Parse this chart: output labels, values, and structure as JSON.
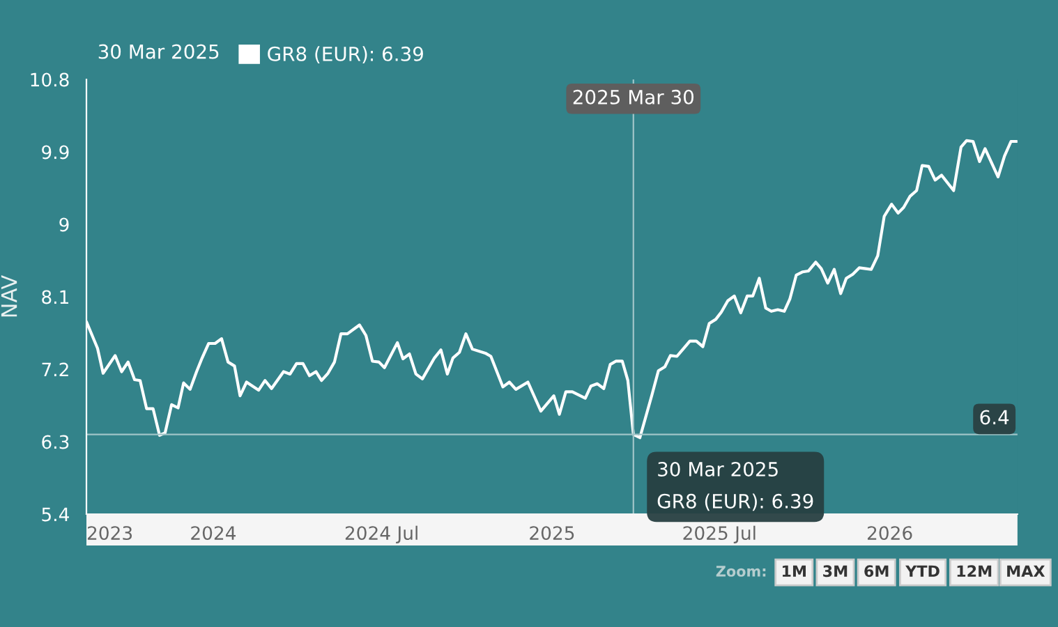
{
  "chart_data": {
    "type": "line",
    "ylabel": "NAV",
    "legend": "top left",
    "grid": false,
    "marker": "none",
    "line_style": "solid",
    "xlim": [
      "2023-08-17",
      "2026-05-19"
    ],
    "xticks": [
      {
        "value": "2023-08-17",
        "label": "2023"
      },
      {
        "value": "2024-01-01",
        "label": "2024"
      },
      {
        "value": "2024-07-01",
        "label": "2024 Jul"
      },
      {
        "value": "2025-01-01",
        "label": "2025"
      },
      {
        "value": "2025-07-01",
        "label": "2025 Jul"
      },
      {
        "value": "2026-01-01",
        "label": "2026"
      }
    ],
    "ylim": [
      5.4,
      10.8
    ],
    "yticks": [
      5.4,
      6.3,
      7.2,
      8.1,
      9,
      9.9,
      10.8
    ],
    "x": [
      "2023-08-17",
      "2023-08-29",
      "2023-09-04",
      "2023-09-17",
      "2023-09-24",
      "2023-10-01",
      "2023-10-08",
      "2023-10-14",
      "2023-10-21",
      "2023-10-28",
      "2023-11-04",
      "2023-11-10",
      "2023-11-17",
      "2023-11-24",
      "2023-11-30",
      "2023-12-07",
      "2023-12-14",
      "2023-12-20",
      "2023-12-27",
      "2024-01-03",
      "2024-01-10",
      "2024-01-17",
      "2024-01-24",
      "2024-01-30",
      "2024-02-06",
      "2024-02-19",
      "2024-02-26",
      "2024-03-04",
      "2024-03-17",
      "2024-03-24",
      "2024-03-31",
      "2024-04-07",
      "2024-04-14",
      "2024-04-21",
      "2024-04-27",
      "2024-05-04",
      "2024-05-11",
      "2024-05-18",
      "2024-05-25",
      "2024-06-07",
      "2024-06-14",
      "2024-06-21",
      "2024-06-28",
      "2024-07-04",
      "2024-07-18",
      "2024-07-24",
      "2024-07-31",
      "2024-08-07",
      "2024-08-14",
      "2024-08-27",
      "2024-09-03",
      "2024-09-10",
      "2024-09-16",
      "2024-09-23",
      "2024-09-30",
      "2024-10-07",
      "2024-10-21",
      "2024-10-27",
      "2024-11-09",
      "2024-11-16",
      "2024-11-23",
      "2024-12-06",
      "2024-12-20",
      "2025-01-03",
      "2025-01-09",
      "2025-01-16",
      "2025-01-23",
      "2025-02-06",
      "2025-02-12",
      "2025-02-19",
      "2025-02-26",
      "2025-03-05",
      "2025-03-11",
      "2025-03-18",
      "2025-03-24",
      "2025-03-30",
      "2025-04-06",
      "2025-04-19",
      "2025-04-26",
      "2025-05-03",
      "2025-05-09",
      "2025-05-16",
      "2025-05-30",
      "2025-06-06",
      "2025-06-13",
      "2025-06-20",
      "2025-06-27",
      "2025-07-03",
      "2025-07-10",
      "2025-07-17",
      "2025-07-24",
      "2025-07-31",
      "2025-08-06",
      "2025-08-13",
      "2025-08-20",
      "2025-08-26",
      "2025-09-02",
      "2025-09-09",
      "2025-09-15",
      "2025-09-22",
      "2025-09-29",
      "2025-10-05",
      "2025-10-13",
      "2025-10-19",
      "2025-10-26",
      "2025-11-02",
      "2025-11-09",
      "2025-11-15",
      "2025-11-22",
      "2025-11-29",
      "2025-12-06",
      "2025-12-12",
      "2025-12-19",
      "2025-12-26",
      "2026-01-03",
      "2026-01-10",
      "2026-01-16",
      "2026-01-23",
      "2026-01-30",
      "2026-02-05",
      "2026-02-12",
      "2026-02-19",
      "2026-02-26",
      "2026-03-11",
      "2026-03-19",
      "2026-03-25",
      "2026-04-01",
      "2026-04-08",
      "2026-04-14",
      "2026-04-28",
      "2026-05-05",
      "2026-05-12",
      "2026-05-18"
    ],
    "series": [
      {
        "name": "GR8 (EUR): 6.39",
        "color": "#ffffff",
        "values": [
          7.79,
          7.46,
          7.15,
          7.37,
          7.17,
          7.29,
          7.07,
          7.06,
          6.71,
          6.71,
          6.38,
          6.41,
          6.76,
          6.72,
          7.03,
          6.95,
          7.17,
          7.34,
          7.52,
          7.52,
          7.58,
          7.29,
          7.24,
          6.87,
          7.04,
          6.94,
          7.06,
          6.96,
          7.17,
          7.14,
          7.27,
          7.27,
          7.12,
          7.17,
          7.06,
          7.15,
          7.29,
          7.64,
          7.64,
          7.75,
          7.62,
          7.3,
          7.29,
          7.22,
          7.53,
          7.33,
          7.39,
          7.14,
          7.08,
          7.34,
          7.44,
          7.14,
          7.34,
          7.41,
          7.64,
          7.45,
          7.4,
          7.36,
          6.98,
          7.04,
          6.95,
          7.04,
          6.68,
          6.87,
          6.64,
          6.92,
          6.92,
          6.84,
          6.99,
          7.02,
          6.96,
          7.26,
          7.3,
          7.3,
          7.06,
          6.39,
          6.35,
          6.88,
          7.18,
          7.23,
          7.37,
          7.36,
          7.55,
          7.55,
          7.48,
          7.77,
          7.82,
          7.91,
          8.05,
          8.11,
          7.9,
          8.11,
          8.11,
          8.33,
          7.96,
          7.92,
          7.94,
          7.92,
          8.07,
          8.37,
          8.41,
          8.42,
          8.53,
          8.45,
          8.27,
          8.44,
          8.14,
          8.33,
          8.38,
          8.46,
          8.45,
          8.44,
          8.61,
          9.1,
          9.25,
          9.14,
          9.21,
          9.35,
          9.42,
          9.73,
          9.72,
          9.55,
          9.61,
          9.42,
          9.96,
          10.04,
          10.03,
          9.78,
          9.94,
          9.59,
          9.85,
          10.03,
          10.03
        ]
      }
    ],
    "ref_lines": [
      {
        "axis": "x",
        "value": "2025-03-30",
        "label": "2025 Mar 30",
        "color": "#9fc4c7"
      },
      {
        "axis": "y",
        "value": 6.39,
        "label": "6.4",
        "color": "#9fc4c7"
      }
    ],
    "annotations": [
      "30 Mar 2025",
      {
        "text": "30 Mar 2025\nGR8 (EUR): 6.39",
        "x": "2025-03-30",
        "y": 6.39
      },
      "Zoom:",
      "1M",
      "3M",
      "6M",
      "YTD",
      "12M",
      "MAX"
    ]
  }
}
